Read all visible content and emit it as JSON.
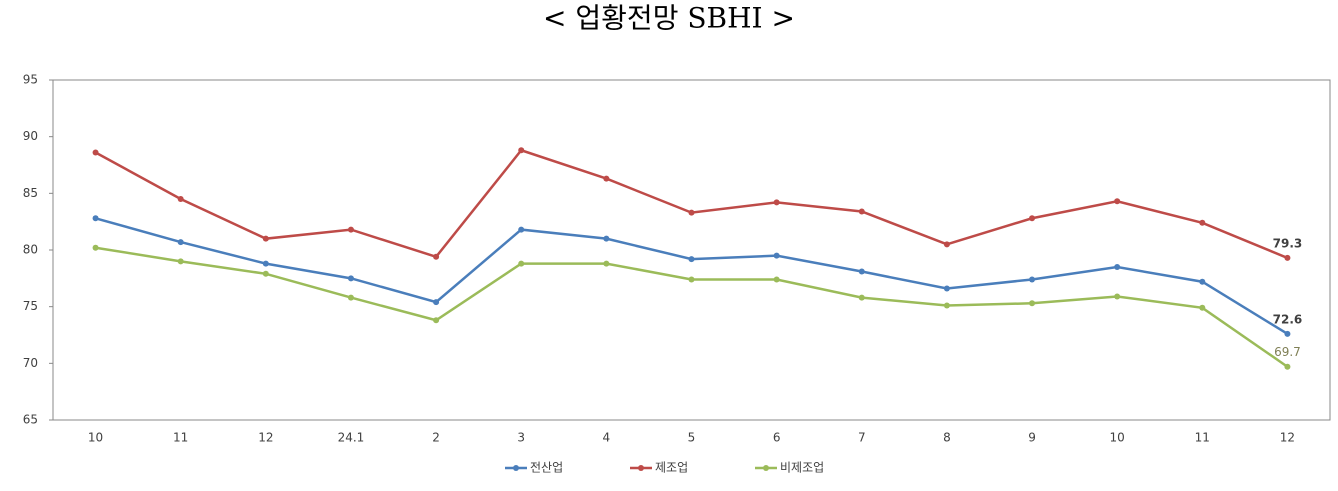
{
  "chart_data": {
    "type": "line",
    "title": "< 업황전망 SBHI >",
    "categories": [
      "10",
      "11",
      "12",
      "24.1",
      "2",
      "3",
      "4",
      "5",
      "6",
      "7",
      "8",
      "9",
      "10",
      "11",
      "12"
    ],
    "series": [
      {
        "name": "전산업",
        "color": "#4a7ebb",
        "values": [
          82.8,
          80.7,
          78.8,
          77.5,
          75.4,
          81.8,
          81.0,
          79.2,
          79.5,
          78.1,
          76.6,
          77.4,
          78.5,
          77.2,
          72.6
        ]
      },
      {
        "name": "제조업",
        "color": "#be4b48",
        "values": [
          88.6,
          84.5,
          81.0,
          81.8,
          79.4,
          88.8,
          86.3,
          83.3,
          84.2,
          83.4,
          80.5,
          82.8,
          84.3,
          82.4,
          79.3
        ]
      },
      {
        "name": "비제조업",
        "color": "#9bbb59",
        "values": [
          80.2,
          79.0,
          77.9,
          75.8,
          73.8,
          78.8,
          78.8,
          77.4,
          77.4,
          75.8,
          75.1,
          75.3,
          75.9,
          74.9,
          69.7
        ]
      }
    ],
    "ylim": [
      65,
      95
    ],
    "yticks": [
      65,
      70,
      75,
      80,
      85,
      90,
      95
    ],
    "grid": false
  }
}
